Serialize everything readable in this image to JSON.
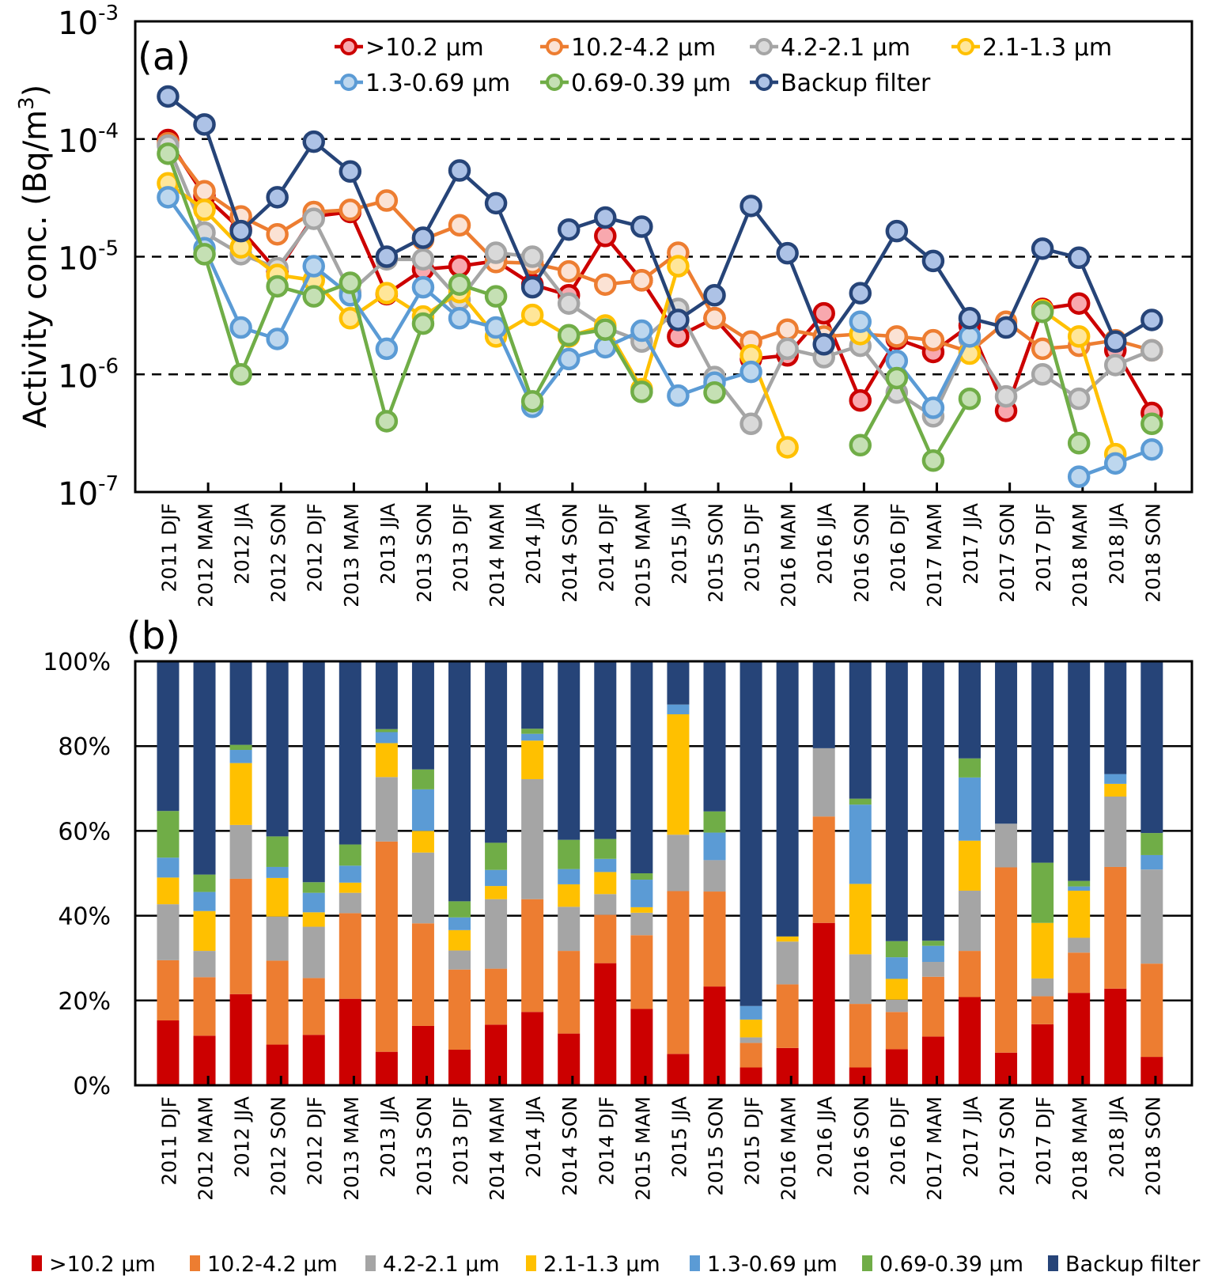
{
  "chart_data": [
    {
      "panel_label": "(a)",
      "type": "line",
      "title": "",
      "xlabel": "",
      "ylabel": "Activity conc. (Bq/m3)",
      "ylabel_parts": {
        "main": "Activity conc. (Bq/m",
        "sup": "3",
        "end": ")"
      },
      "yscale": "log",
      "ylim": [
        1e-07,
        0.001
      ],
      "yticks": [
        {
          "base": "10",
          "exp": "-3",
          "value": 0.001
        },
        {
          "base": "10",
          "exp": "-4",
          "value": 0.0001
        },
        {
          "base": "10",
          "exp": "-5",
          "value": 1e-05
        },
        {
          "base": "10",
          "exp": "-6",
          "value": 1e-06
        },
        {
          "base": "10",
          "exp": "-7",
          "value": 1e-07
        }
      ],
      "gridlines": "dashed at 1e-4, 1e-5, 1e-6",
      "legend_position": "top",
      "categories": [
        "2011 DJF",
        "2012 MAM",
        "2012 JJA",
        "2012 SON",
        "2012 DJF",
        "2013 MAM",
        "2013 JJA",
        "2013 SON",
        "2013 DJF",
        "2014 MAM",
        "2014 JJA",
        "2014 SON",
        "2014 DJF",
        "2015 MAM",
        "2015 JJA",
        "2015 SON",
        "2015 DJF",
        "2016 MAM",
        "2016 JJA",
        "2016 SON",
        "2016 DJF",
        "2017 MAM",
        "2017 JJA",
        "2017 SON",
        "2017 DJF",
        "2018 MAM",
        "2018 JJA",
        "2018 SON"
      ],
      "series": [
        {
          "name": ">10.2 μm",
          "color": "#cc0000",
          "fill": "#f8a8ae",
          "values": [
            9.8e-05,
            3.3e-05,
            1.7e-05,
            7.5e-06,
            2.2e-05,
            2.4e-05,
            4.8e-06,
            7.8e-06,
            8.3e-06,
            9.2e-06,
            5.8e-06,
            4.7e-06,
            1.5e-05,
            6.3e-06,
            2.1e-06,
            3e-06,
            1.35e-06,
            1.45e-06,
            3.3e-06,
            6e-07,
            2e-06,
            1.55e-06,
            2.6e-06,
            4.9e-07,
            3.6e-06,
            4e-06,
            1.6e-06,
            4.7e-07
          ]
        },
        {
          "name": "10.2-4.2 μm",
          "color": "#ed7d31",
          "fill": "#fbe2d4",
          "values": [
            9.2e-05,
            3.6e-05,
            2.2e-05,
            1.55e-05,
            2.4e-05,
            2.5e-05,
            3e-05,
            1.4e-05,
            1.85e-05,
            9e-06,
            8.8e-06,
            7.5e-06,
            5.8e-06,
            6.3e-06,
            1.08e-05,
            3e-06,
            1.9e-06,
            2.4e-06,
            2.1e-06,
            2.2e-06,
            2.1e-06,
            1.95e-06,
            1.55e-06,
            2.8e-06,
            1.65e-06,
            1.75e-06,
            1.95e-06,
            1.6e-06
          ]
        },
        {
          "name": "4.2-2.1 μm",
          "color": "#a5a5a5",
          "fill": "#d9d9d9",
          "values": [
            8.8e-05,
            1.6e-05,
            1.05e-05,
            8e-06,
            2.1e-05,
            5e-06,
            9.5e-06,
            9.5e-06,
            4.3e-06,
            1.08e-05,
            1e-05,
            4e-06,
            2.5e-06,
            1.9e-06,
            3.6e-06,
            9.5e-07,
            3.8e-07,
            1.65e-06,
            1.4e-06,
            1.75e-06,
            7e-07,
            4.4e-07,
            2e-06,
            6.5e-07,
            1e-06,
            6.2e-07,
            1.2e-06,
            1.6e-06
          ]
        },
        {
          "name": "2.1-1.3 μm",
          "color": "#ffc000",
          "fill": "#ffe699",
          "values": [
            4.2e-05,
            2.5e-05,
            1.2e-05,
            7e-06,
            6.3e-06,
            3e-06,
            4.9e-06,
            3.1e-06,
            5e-06,
            2.1e-06,
            3.2e-06,
            2.1e-06,
            2.6e-06,
            7.5e-07,
            8.3e-06,
            null,
            1.45e-06,
            2.4e-07,
            null,
            2.2e-06,
            null,
            null,
            1.5e-06,
            null,
            3.5e-06,
            2.1e-06,
            2.1e-07,
            null
          ]
        },
        {
          "name": "1.3-0.69 μm",
          "color": "#5b9bd5",
          "fill": "#bdd7ee",
          "values": [
            3.2e-05,
            1.18e-05,
            2.5e-06,
            2e-06,
            8.3e-06,
            4.7e-06,
            1.65e-06,
            5.5e-06,
            3e-06,
            2.5e-06,
            5.3e-07,
            1.35e-06,
            1.7e-06,
            2.35e-06,
            6.6e-07,
            8.5e-07,
            1.05e-06,
            null,
            null,
            2.8e-06,
            1.3e-06,
            5.2e-07,
            2.1e-06,
            null,
            null,
            1.35e-07,
            1.75e-07,
            2.3e-07
          ]
        },
        {
          "name": "0.69-0.39 μm",
          "color": "#70ad47",
          "fill": "#c5e0b4",
          "values": [
            7.5e-05,
            1.05e-05,
            1e-06,
            5.6e-06,
            4.6e-06,
            6e-06,
            4e-07,
            2.7e-06,
            5.8e-06,
            4.6e-06,
            5.9e-07,
            2.15e-06,
            2.4e-06,
            7.1e-07,
            null,
            7e-07,
            null,
            null,
            null,
            2.5e-07,
            9.3e-07,
            1.85e-07,
            6.2e-07,
            null,
            3.4e-06,
            2.6e-07,
            null,
            3.8e-07
          ]
        },
        {
          "name": "Backup filter",
          "color": "#264478",
          "fill": "#adc2e6",
          "values": [
            0.00023,
            0.000133,
            1.65e-05,
            3.2e-05,
            9.5e-05,
            5.3e-05,
            1e-05,
            1.45e-05,
            5.4e-05,
            2.85e-05,
            5.5e-06,
            1.7e-05,
            2.15e-05,
            1.8e-05,
            2.9e-06,
            4.7e-06,
            2.7e-05,
            1.07e-05,
            1.8e-06,
            4.9e-06,
            1.65e-05,
            9.2e-06,
            3e-06,
            2.5e-06,
            1.17e-05,
            9.8e-06,
            1.9e-06,
            2.9e-06
          ]
        }
      ]
    },
    {
      "panel_label": "(b)",
      "type": "bar",
      "stacked": "percent",
      "title": "",
      "xlabel": "",
      "ylabel": "",
      "ylim": [
        0,
        100
      ],
      "yticks": [
        "0%",
        "20%",
        "40%",
        "60%",
        "80%",
        "100%"
      ],
      "gridlines": "solid at 20%, 40%, 60%, 80%",
      "legend_position": "bottom",
      "categories": [
        "2011 DJF",
        "2012 MAM",
        "2012 JJA",
        "2012 SON",
        "2012 DJF",
        "2013 MAM",
        "2013 JJA",
        "2013 SON",
        "2013 DJF",
        "2014 MAM",
        "2014 JJA",
        "2014 SON",
        "2014 DJF",
        "2015 MAM",
        "2015 JJA",
        "2015 SON",
        "2015 DJF",
        "2016 MAM",
        "2016 JJA",
        "2016 SON",
        "2016 DJF",
        "2017 MAM",
        "2017 JJA",
        "2017 SON",
        "2017 DJF",
        "2018 MAM",
        "2018 JJA",
        "2018 SON"
      ],
      "series": [
        {
          "name": ">10.2 μm",
          "color": "#cc0000",
          "values": [
            15.3,
            11.7,
            21.5,
            9.6,
            11.9,
            20.4,
            7.9,
            14.0,
            8.4,
            14.3,
            17.3,
            12.2,
            28.8,
            18.0,
            7.4,
            23.3,
            4.2,
            8.8,
            38.3,
            4.2,
            8.5,
            11.5,
            20.8,
            7.7,
            14.4,
            21.8,
            22.8,
            6.7
          ]
        },
        {
          "name": "10.2-4.2 μm",
          "color": "#ed7d31",
          "values": [
            14.2,
            13.8,
            27.2,
            19.8,
            13.4,
            20.2,
            49.6,
            24.2,
            18.9,
            13.2,
            26.6,
            19.5,
            11.4,
            17.4,
            38.4,
            22.4,
            5.8,
            15.0,
            25.1,
            15.0,
            8.8,
            14.1,
            10.9,
            43.7,
            6.6,
            9.5,
            28.7,
            22.0
          ]
        },
        {
          "name": "4.2-2.1 μm",
          "color": "#a5a5a5",
          "values": [
            13.2,
            6.2,
            12.7,
            10.4,
            12.1,
            4.8,
            15.2,
            16.7,
            4.5,
            16.4,
            28.3,
            10.4,
            4.9,
            5.3,
            13.3,
            7.4,
            1.3,
            10.1,
            16.1,
            11.7,
            2.9,
            3.5,
            14.2,
            10.3,
            4.2,
            3.5,
            16.6,
            22.2
          ]
        },
        {
          "name": "2.1-1.3 μm",
          "color": "#ffc000",
          "values": [
            6.3,
            9.4,
            14.6,
            9.1,
            3.4,
            2.4,
            8.0,
            5.1,
            4.8,
            3.1,
            9.1,
            5.3,
            5.2,
            1.3,
            28.4,
            0,
            4.2,
            1.2,
            0,
            16.6,
            4.9,
            0,
            11.8,
            0,
            13.1,
            11.1,
            3.0,
            0
          ]
        },
        {
          "name": "1.3-0.69 μm",
          "color": "#5b9bd5",
          "values": [
            4.7,
            4.5,
            3.1,
            2.6,
            4.6,
            4.0,
            2.6,
            9.8,
            3.0,
            3.8,
            1.6,
            3.6,
            3.1,
            6.5,
            2.3,
            6.5,
            3.2,
            0,
            0,
            18.7,
            5.1,
            3.8,
            14.9,
            0,
            0,
            1.0,
            2.3,
            3.4
          ]
        },
        {
          "name": "0.69-0.39 μm",
          "color": "#70ad47",
          "values": [
            11.0,
            4.1,
            1.2,
            7.2,
            2.5,
            5.0,
            0.7,
            4.7,
            3.8,
            6.4,
            1.2,
            6.9,
            4.7,
            1.5,
            0,
            5.0,
            0,
            0,
            0,
            1.4,
            3.8,
            1.2,
            4.5,
            0,
            14.2,
            1.3,
            0,
            5.2
          ]
        },
        {
          "name": "Backup filter",
          "color": "#264478",
          "values": [
            35.3,
            50.3,
            19.7,
            41.3,
            52.1,
            43.2,
            16.0,
            25.5,
            56.6,
            42.8,
            15.9,
            42.1,
            41.9,
            50.0,
            10.2,
            35.4,
            81.3,
            64.9,
            20.5,
            32.4,
            66.0,
            65.9,
            22.9,
            38.3,
            47.5,
            51.8,
            26.6,
            40.5
          ]
        }
      ]
    }
  ],
  "legend_bottom": {
    "items": [
      ">10.2 μm",
      "10.2-4.2 μm",
      "4.2-2.1 μm",
      "2.1-1.3 μm",
      "1.3-0.69 μm",
      "0.69-0.39 μm",
      "Backup filter"
    ]
  }
}
